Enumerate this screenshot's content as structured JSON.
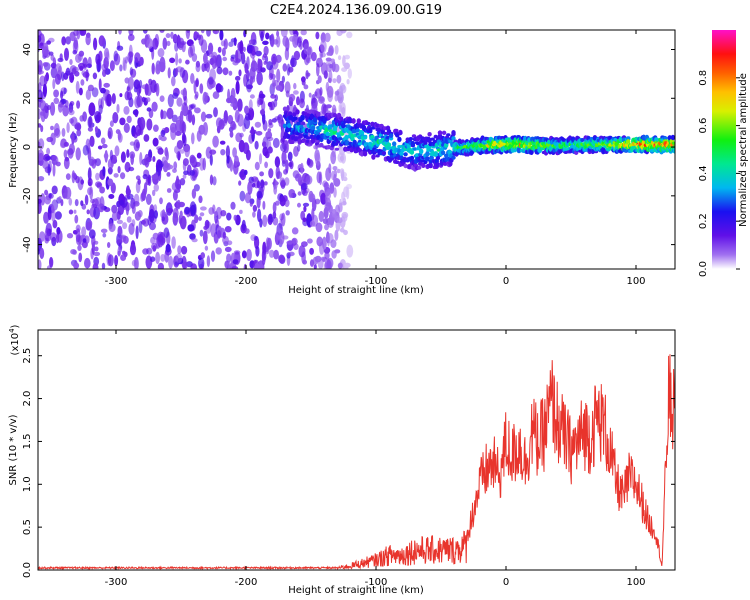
{
  "title": "C2E4.2024.136.09.00.G19",
  "colors": {
    "snr_line": "#e8342c",
    "text": "#000000",
    "background": "#ffffff"
  },
  "chart_data": [
    {
      "type": "heatmap",
      "name_on_chart": "",
      "xlabel": "Height of straight line (km)",
      "ylabel": "Frequency (Hz)",
      "xlim": [
        -360,
        130
      ],
      "ylim": [
        -50,
        48
      ],
      "xticks": [
        -300,
        -200,
        -100,
        0,
        100
      ],
      "yticks": [
        -40,
        -20,
        0,
        20,
        40
      ],
      "colorbar": {
        "label": "Normalized spectral amplitude",
        "range": [
          0.0,
          1.0
        ],
        "ticks": [
          "0.0",
          "0.2",
          "0.4",
          "0.6",
          "0.8"
        ],
        "colormap": "rainbow (white, violet, blue, cyan, green, yellow, orange, red, magenta)"
      },
      "ridge": [
        {
          "x": -170,
          "y": 9,
          "amplitude": 0.35
        },
        {
          "x": -150,
          "y": 8,
          "amplitude": 0.4
        },
        {
          "x": -130,
          "y": 6,
          "amplitude": 0.45
        },
        {
          "x": -110,
          "y": 4,
          "amplitude": 0.45
        },
        {
          "x": -90,
          "y": 1,
          "amplitude": 0.45
        },
        {
          "x": -70,
          "y": -2,
          "amplitude": 0.4
        },
        {
          "x": -50,
          "y": -1,
          "amplitude": 0.45
        },
        {
          "x": -30,
          "y": 0,
          "amplitude": 0.55
        },
        {
          "x": -10,
          "y": 1,
          "amplitude": 0.75
        },
        {
          "x": 10,
          "y": 1,
          "amplitude": 0.8
        },
        {
          "x": 40,
          "y": 0.5,
          "amplitude": 0.55
        },
        {
          "x": 70,
          "y": 1,
          "amplitude": 0.6
        },
        {
          "x": 100,
          "y": 1,
          "amplitude": 0.85
        },
        {
          "x": 125,
          "y": 1,
          "amplitude": 0.9
        }
      ],
      "noise_region_xlim": [
        -360,
        -150
      ],
      "grid": false,
      "legend": "colorbar-right"
    },
    {
      "type": "line",
      "xlabel": "Height of straight line (km)",
      "ylabel": "SNR (10 * v/v)",
      "y_multiplier": "(x10^4)",
      "y_multiplier_base": "(x10",
      "y_multiplier_exp": "4",
      "y_multiplier_close": ")",
      "xlim": [
        -360,
        130
      ],
      "ylim": [
        0,
        2.8
      ],
      "xticks": [
        -300,
        -200,
        -100,
        0,
        100
      ],
      "yticks": [
        "0.0",
        "0.5",
        "1.0",
        "1.5",
        "2.0",
        "2.5"
      ],
      "grid": false,
      "x": [
        -360,
        -300,
        -200,
        -150,
        -130,
        -120,
        -100,
        -90,
        -80,
        -70,
        -60,
        -50,
        -40,
        -30,
        -25,
        -20,
        -15,
        -10,
        -5,
        0,
        5,
        10,
        15,
        20,
        25,
        30,
        35,
        40,
        45,
        50,
        55,
        60,
        65,
        70,
        75,
        80,
        85,
        90,
        95,
        100,
        105,
        110,
        115,
        120,
        125,
        130
      ],
      "y": [
        0.02,
        0.02,
        0.02,
        0.02,
        0.04,
        0.08,
        0.2,
        0.3,
        0.3,
        0.4,
        0.4,
        0.4,
        0.4,
        0.5,
        0.9,
        1.3,
        1.5,
        1.6,
        1.4,
        1.9,
        1.7,
        1.9,
        1.6,
        2.1,
        1.9,
        2.1,
        2.55,
        2.2,
        2.0,
        1.8,
        1.9,
        2.1,
        2.0,
        2.3,
        2.2,
        1.8,
        1.3,
        1.1,
        1.4,
        1.3,
        1.0,
        0.7,
        0.6,
        0.05,
        2.6,
        2.3
      ]
    }
  ]
}
